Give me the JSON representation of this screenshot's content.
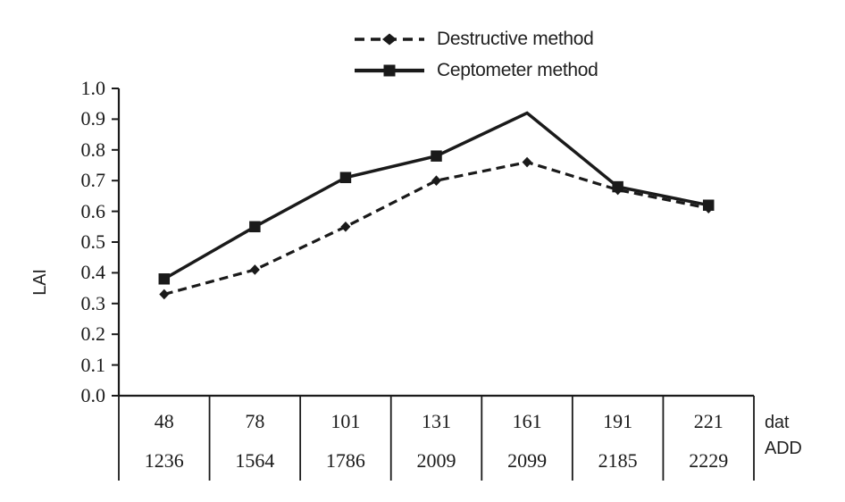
{
  "chart_data": {
    "type": "line",
    "title": "",
    "ylabel": "LAI",
    "ylim": [
      0.0,
      1.0
    ],
    "ytick_step": 0.1,
    "ytick_decimals": 1,
    "grid": false,
    "legend_position": "top-center",
    "x_header_rows": [
      {
        "label": "dat",
        "values": [
          "48",
          "78",
          "101",
          "131",
          "161",
          "191",
          "221"
        ]
      },
      {
        "label": "ADD",
        "values": [
          "1236",
          "1564",
          "1786",
          "2009",
          "2099",
          "2185",
          "2229"
        ]
      }
    ],
    "series": [
      {
        "name": "Destructive method",
        "line_style": "dashed",
        "marker": "diamond",
        "color": "#1a1a1a",
        "values": [
          0.33,
          0.41,
          0.55,
          0.7,
          0.76,
          0.67,
          0.61
        ]
      },
      {
        "name": "Ceptometer method",
        "line_style": "solid",
        "marker": "square",
        "color": "#1a1a1a",
        "marker_skip_index": 4,
        "values": [
          0.38,
          0.55,
          0.71,
          0.78,
          0.92,
          0.68,
          0.62
        ]
      }
    ],
    "colors": {
      "line": "#1a1a1a",
      "text": "#1f1f1f"
    }
  }
}
